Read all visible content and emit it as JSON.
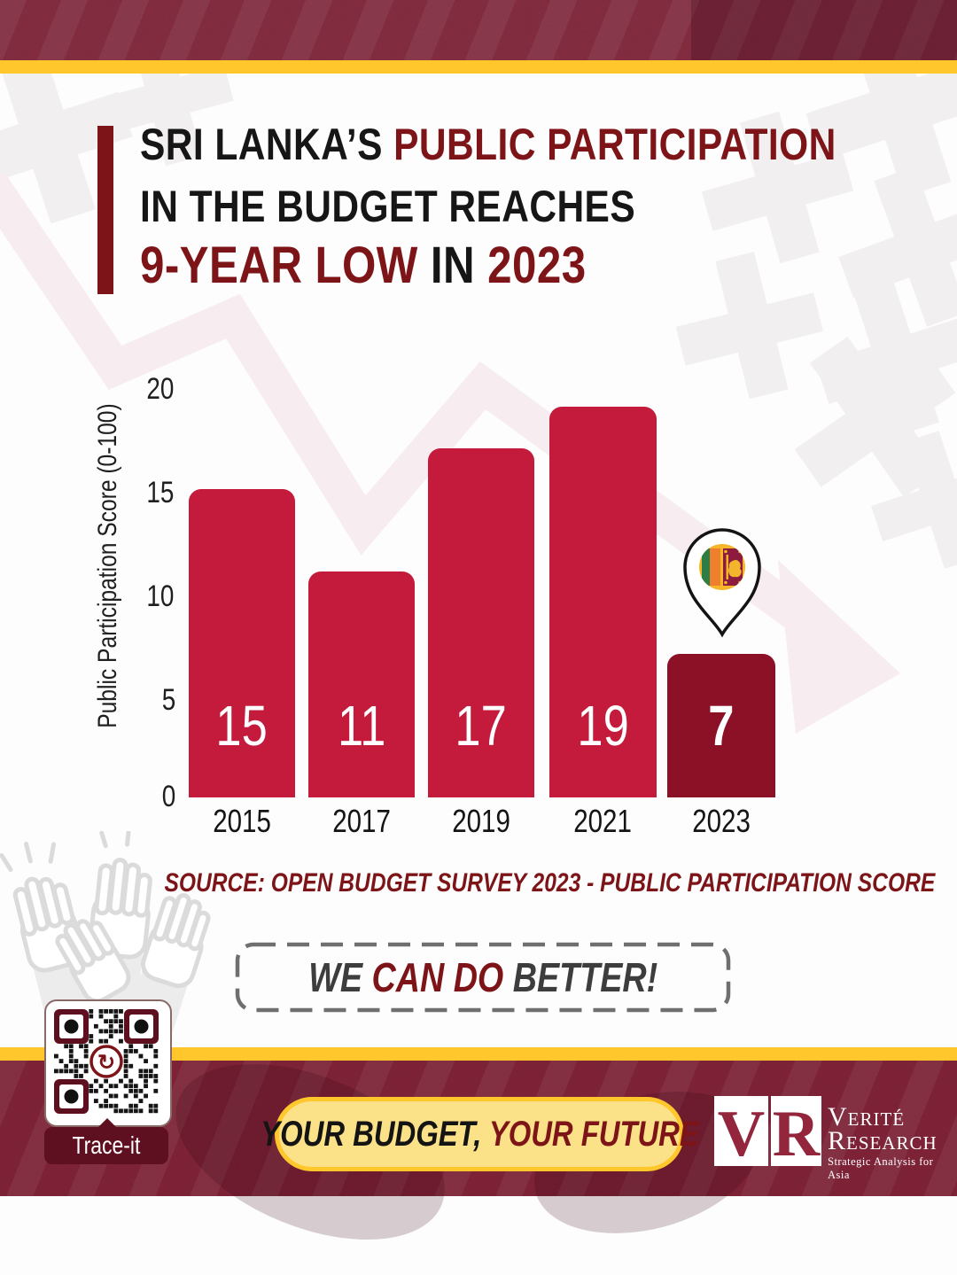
{
  "header": {
    "line1_black": "SRI LANKA’S",
    "line1_maroon": "PUBLIC PARTICIPATION",
    "line2": "IN THE BUDGET REACHES",
    "line3_maroon1": "9-YEAR LOW",
    "line3_black": "IN",
    "line3_maroon2": "2023"
  },
  "chart_data": {
    "type": "bar",
    "title": "Sri Lanka's Public Participation in the Budget reaches 9-year low in 2023",
    "categories": [
      "2015",
      "2017",
      "2019",
      "2021",
      "2023"
    ],
    "values": [
      15,
      11,
      17,
      19,
      7
    ],
    "ylabel": "Public Participation Score (0-100)",
    "xlabel": "",
    "yticks": [
      0,
      5,
      10,
      15,
      20
    ],
    "ylim": [
      0,
      20
    ],
    "grid": false,
    "highlight_category": "2023",
    "bar_color": "#C41B3D",
    "highlight_color": "#8C1026",
    "marker": "sri-lanka-flag-location-pin"
  },
  "source": {
    "text": "SOURCE: OPEN BUDGET SURVEY 2023 - PUBLIC PARTICIPATION SCORE"
  },
  "callout": {
    "part1": "WE ",
    "part2": "CAN DO ",
    "part3": "BETTER!"
  },
  "qr": {
    "label": "Trace-it",
    "center_glyph": "↻"
  },
  "footer": {
    "slogan_black": "YOUR BUDGET, ",
    "slogan_maroon": "YOUR FUTURE",
    "logo_v": "V",
    "logo_r": "R",
    "logo_name1": "Verité",
    "logo_name2": "Research",
    "logo_tagline": "Strategic Analysis for Asia"
  },
  "colors": {
    "accent_maroon": "#7D1418",
    "bar_red": "#C41B3D",
    "bar_dark": "#8C1026",
    "yellow": "#FFC72B",
    "banner_maroon": "#9C2B44",
    "decor_pink": "#F7ECEF",
    "decor_gray": "#F1EFF0"
  }
}
